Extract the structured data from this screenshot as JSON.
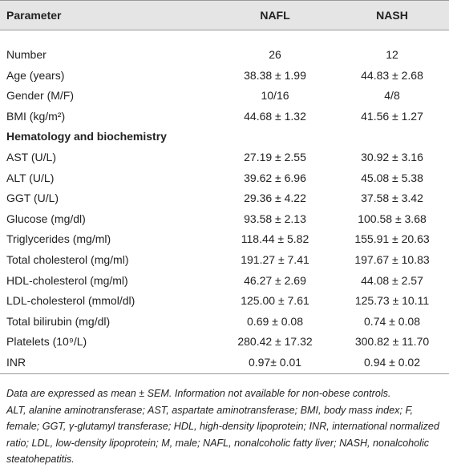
{
  "table": {
    "header": [
      "Parameter",
      "NAFL",
      "NASH"
    ],
    "rows": [
      [
        "Number",
        "26",
        "12"
      ],
      [
        "Age (years)",
        "38.38 ± 1.99",
        "44.83 ± 2.68"
      ],
      [
        "Gender (M/F)",
        "10/16",
        "4/8"
      ],
      [
        "BMI (kg/m²)",
        "44.68 ± 1.32",
        "41.56 ± 1.27"
      ],
      [
        "Hematology and biochemistry"
      ],
      [
        "AST (U/L)",
        "27.19 ± 2.55",
        "30.92 ± 3.16"
      ],
      [
        "ALT (U/L)",
        "39.62 ± 6.96",
        "45.08 ± 5.38"
      ],
      [
        "GGT (U/L)",
        "29.36 ± 4.22",
        "37.58 ± 3.42"
      ],
      [
        "Glucose (mg/dl)",
        "93.58 ± 2.13",
        "100.58 ± 3.68"
      ],
      [
        "Triglycerides (mg/ml)",
        "118.44 ± 5.82",
        "155.91 ± 20.63"
      ],
      [
        "Total cholesterol (mg/ml)",
        "191.27 ± 7.41",
        "197.67 ± 10.83"
      ],
      [
        "HDL-cholesterol (mg/ml)",
        "46.27 ± 2.69",
        "44.08 ± 2.57"
      ],
      [
        "LDL-cholesterol (mmol/dl)",
        "125.00 ± 7.61",
        "125.73 ± 10.11"
      ],
      [
        "Total bilirubin (mg/dl)",
        "0.69 ± 0.08",
        "0.74 ± 0.08"
      ],
      [
        "Platelets (10⁹/L)",
        "280.42 ± 17.32",
        "300.82 ± 11.70"
      ],
      [
        "INR",
        "0.97± 0.01",
        "0.94 ± 0.02"
      ]
    ],
    "footnotes": [
      "Data are expressed as mean ± SEM. Information not available for non-obese controls.",
      "ALT, alanine aminotransferase; AST, aspartate aminotransferase; BMI, body mass index; F, female; GGT, γ-glutamyl transferase; HDL, high-density lipoprotein; INR, international normalized ratio; LDL, low-density lipoprotein; M, male; NAFL, nonalcoholic fatty liver; NASH, nonalcoholic steatohepatitis."
    ]
  }
}
